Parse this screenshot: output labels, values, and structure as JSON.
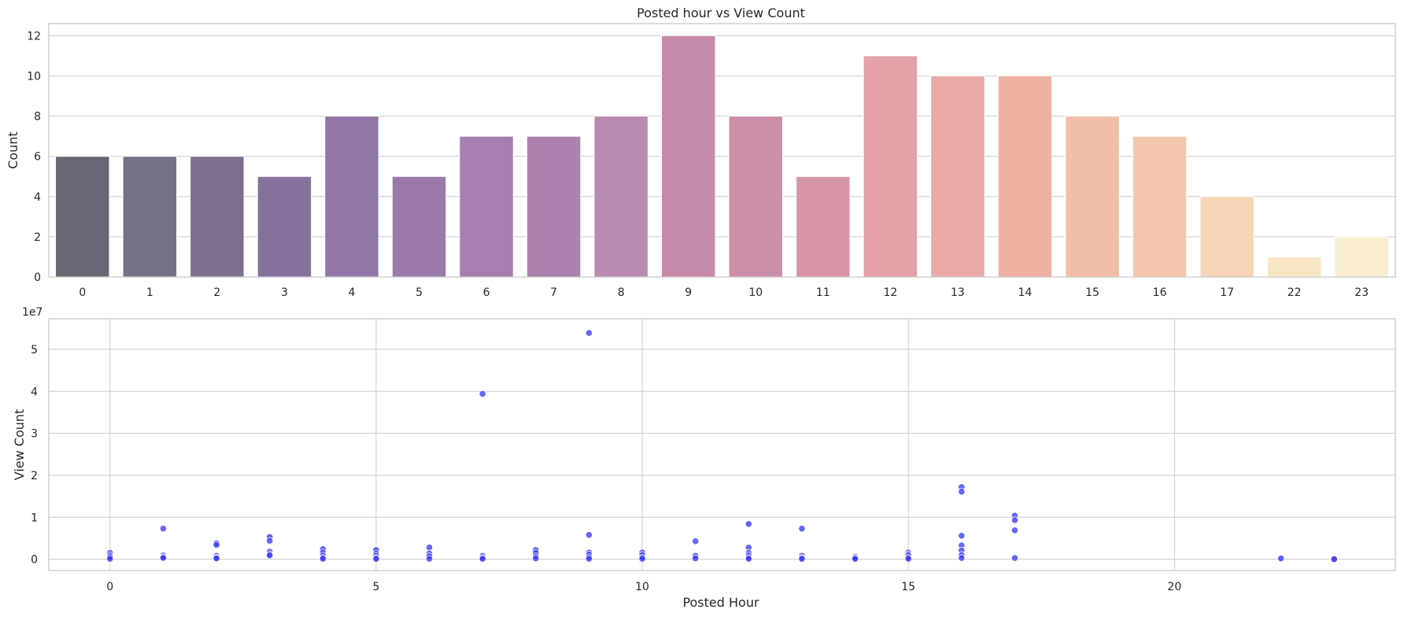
{
  "chart_data": [
    {
      "type": "bar",
      "title": "Posted hour vs View Count",
      "xlabel": "",
      "ylabel": "Count",
      "categories": [
        "0",
        "1",
        "2",
        "3",
        "4",
        "5",
        "6",
        "7",
        "8",
        "9",
        "10",
        "11",
        "12",
        "13",
        "14",
        "15",
        "16",
        "17",
        "22",
        "23"
      ],
      "values": [
        6,
        6,
        6,
        5,
        8,
        5,
        7,
        7,
        8,
        12,
        8,
        5,
        11,
        10,
        10,
        8,
        7,
        4,
        1,
        2
      ],
      "colors": [
        "#686874",
        "#747286",
        "#7c708e",
        "#86719d",
        "#9277a6",
        "#9b7aaa",
        "#a57faf",
        "#ad82ae",
        "#b98bb0",
        "#c48baa",
        "#cc8ea8",
        "#d796a7",
        "#e4a1a7",
        "#eaa9a4",
        "#eeb2a2",
        "#f1bea7",
        "#f3c7ad",
        "#f6d6b7",
        "#f9e6c5",
        "#faeed2"
      ],
      "ylim": [
        0,
        12.6
      ],
      "yticks": [
        0,
        2,
        4,
        6,
        8,
        10,
        12
      ],
      "grid": true
    },
    {
      "type": "scatter",
      "title": "",
      "xlabel": "Posted Hour",
      "ylabel": "View Count",
      "offset_label": "1e7",
      "xlim": [
        -1.15,
        24.15
      ],
      "ylim": [
        -2.7,
        57.3
      ],
      "xticks": [
        0,
        5,
        10,
        15,
        20
      ],
      "yticks": [
        0,
        1,
        2,
        3,
        4,
        5
      ],
      "color": "#3b3bf5",
      "grid": true,
      "points": [
        [
          0,
          1.5
        ],
        [
          0,
          0.9
        ],
        [
          0,
          0.5
        ],
        [
          0,
          0.1
        ],
        [
          1,
          7.3
        ],
        [
          1,
          0.9
        ],
        [
          1,
          0.5
        ],
        [
          1,
          0.3
        ],
        [
          2,
          3.8
        ],
        [
          2,
          3.4
        ],
        [
          2,
          0.8
        ],
        [
          2,
          0.4
        ],
        [
          2,
          0.2
        ],
        [
          3,
          5.3
        ],
        [
          3,
          4.4
        ],
        [
          3,
          1.8
        ],
        [
          3,
          1.2
        ],
        [
          3,
          0.9
        ],
        [
          4,
          2.4
        ],
        [
          4,
          1.6
        ],
        [
          4,
          0.9
        ],
        [
          4,
          0.4
        ],
        [
          4,
          0.1
        ],
        [
          5,
          2.2
        ],
        [
          5,
          1.3
        ],
        [
          5,
          0.8
        ],
        [
          5,
          0.3
        ],
        [
          5,
          0.1
        ],
        [
          6,
          2.8
        ],
        [
          6,
          1.4
        ],
        [
          6,
          0.7
        ],
        [
          6,
          0.1
        ],
        [
          7,
          39.4
        ],
        [
          7,
          0.8
        ],
        [
          7,
          0.3
        ],
        [
          7,
          0.1
        ],
        [
          8,
          2.2
        ],
        [
          8,
          1.5
        ],
        [
          8,
          0.7
        ],
        [
          8,
          0.2
        ],
        [
          9,
          53.9
        ],
        [
          9,
          5.8
        ],
        [
          9,
          1.6
        ],
        [
          9,
          1.1
        ],
        [
          9,
          0.5
        ],
        [
          9,
          0.1
        ],
        [
          10,
          1.6
        ],
        [
          10,
          1.0
        ],
        [
          10,
          0.4
        ],
        [
          10,
          0.1
        ],
        [
          11,
          4.3
        ],
        [
          11,
          0.8
        ],
        [
          11,
          0.2
        ],
        [
          12,
          8.4
        ],
        [
          12,
          2.8
        ],
        [
          12,
          1.5
        ],
        [
          12,
          0.9
        ],
        [
          12,
          0.4
        ],
        [
          12,
          0.1
        ],
        [
          13,
          7.3
        ],
        [
          13,
          0.8
        ],
        [
          13,
          0.3
        ],
        [
          13,
          0.1
        ],
        [
          14,
          0.6
        ],
        [
          14,
          0.3
        ],
        [
          14,
          0.1
        ],
        [
          15,
          1.6
        ],
        [
          15,
          1.2
        ],
        [
          15,
          0.9
        ],
        [
          15,
          0.4
        ],
        [
          15,
          0.1
        ],
        [
          16,
          17.2
        ],
        [
          16,
          16.1
        ],
        [
          16,
          5.6
        ],
        [
          16,
          3.3
        ],
        [
          16,
          2.1
        ],
        [
          16,
          1.0
        ],
        [
          16,
          0.3
        ],
        [
          17,
          10.4
        ],
        [
          17,
          9.3
        ],
        [
          17,
          6.9
        ],
        [
          17,
          0.3
        ],
        [
          22,
          0.2
        ],
        [
          23,
          0.1
        ],
        [
          23,
          0.0
        ]
      ]
    }
  ]
}
